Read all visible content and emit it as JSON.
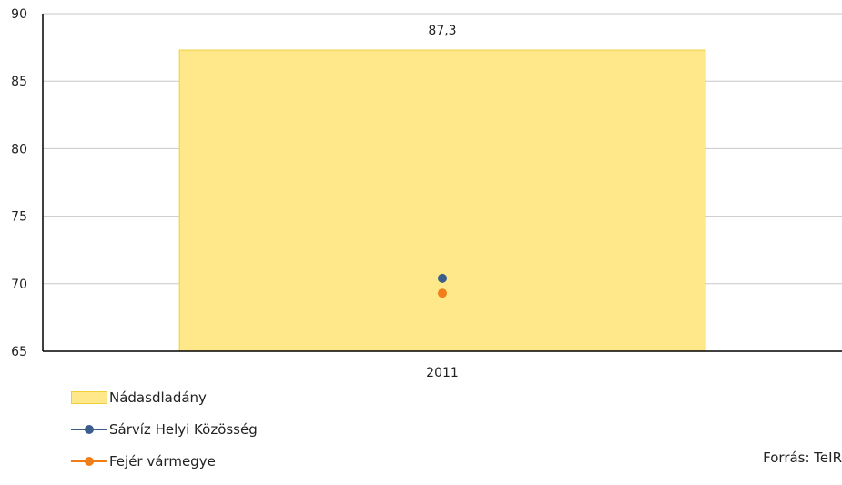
{
  "chart_data": {
    "type": "bar",
    "categories": [
      "2011"
    ],
    "series": [
      {
        "name": "Nádasdladány",
        "kind": "bar",
        "values": [
          87.3
        ],
        "color": "#FFE88A",
        "stroke": "#F0CF3A",
        "label": "87,3"
      },
      {
        "name": "Sárvíz Helyi Közösség",
        "kind": "line",
        "values": [
          70.4
        ],
        "color": "#3A5D8C"
      },
      {
        "name": "Fejér vármegye",
        "kind": "line",
        "values": [
          69.3
        ],
        "color": "#F07D1A"
      }
    ],
    "ylim": [
      65,
      90
    ],
    "yticks": [
      "65",
      "70",
      "75",
      "80",
      "85",
      "90"
    ],
    "grid": true,
    "legend_position": "bottom-left"
  },
  "source": "Forrás: TeIR"
}
